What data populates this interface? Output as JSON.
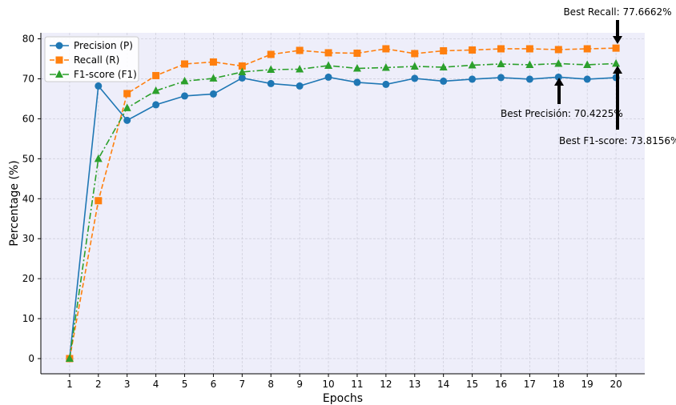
{
  "chart_data": {
    "type": "line",
    "xlabel": "Epochs",
    "ylabel": "Percentage (%)",
    "x": [
      1,
      2,
      3,
      4,
      5,
      6,
      7,
      8,
      9,
      10,
      11,
      12,
      13,
      14,
      15,
      16,
      17,
      18,
      19,
      20
    ],
    "xticks": [
      "1",
      "2",
      "3",
      "4",
      "5",
      "6",
      "7",
      "8",
      "9",
      "10",
      "11",
      "12",
      "13",
      "14",
      "15",
      "16",
      "17",
      "18",
      "19",
      "20"
    ],
    "yticks": [
      "0",
      "10",
      "20",
      "30",
      "40",
      "50",
      "60",
      "70",
      "80"
    ],
    "ylim": [
      -3.8,
      81.5
    ],
    "xlim": [
      0,
      21
    ],
    "grid": true,
    "legend_position": "top-left",
    "series": [
      {
        "name": "Precision (P)",
        "color": "#1f77b4",
        "marker": "circle",
        "linestyle": "solid",
        "values": [
          0,
          68.2,
          59.6,
          63.5,
          65.7,
          66.2,
          70.2,
          68.8,
          68.2,
          70.4,
          69.1,
          68.6,
          70.1,
          69.4,
          69.9,
          70.3,
          69.9,
          70.42,
          69.9,
          70.3
        ]
      },
      {
        "name": "Recall (R)",
        "color": "#ff7f0e",
        "marker": "square",
        "linestyle": "dashed",
        "values": [
          0,
          39.5,
          66.3,
          70.8,
          73.7,
          74.2,
          73.2,
          76.1,
          77.1,
          76.5,
          76.4,
          77.5,
          76.3,
          77.0,
          77.2,
          77.5,
          77.5,
          77.3,
          77.5,
          77.67
        ]
      },
      {
        "name": "F1-score (F1)",
        "color": "#2ca02c",
        "marker": "triangle",
        "linestyle": "dashdot",
        "values": [
          0,
          50.0,
          62.7,
          67.0,
          69.4,
          70.1,
          71.7,
          72.3,
          72.4,
          73.3,
          72.6,
          72.8,
          73.1,
          72.9,
          73.4,
          73.7,
          73.5,
          73.8,
          73.5,
          73.82
        ]
      }
    ],
    "annotations": [
      {
        "text": "Best Recall: 77.6662%",
        "x": 20,
        "y": 77.67,
        "arrow": "down"
      },
      {
        "text": "Best Precisión: 70.4225%",
        "x": 18,
        "y": 70.42,
        "arrow": "up"
      },
      {
        "text": "Best F1-score: 73.8156%",
        "x": 20,
        "y": 73.82,
        "arrow": "up"
      }
    ],
    "colors": {
      "plot_background": "#eeeefa",
      "grid": "#cfcfdc"
    }
  }
}
